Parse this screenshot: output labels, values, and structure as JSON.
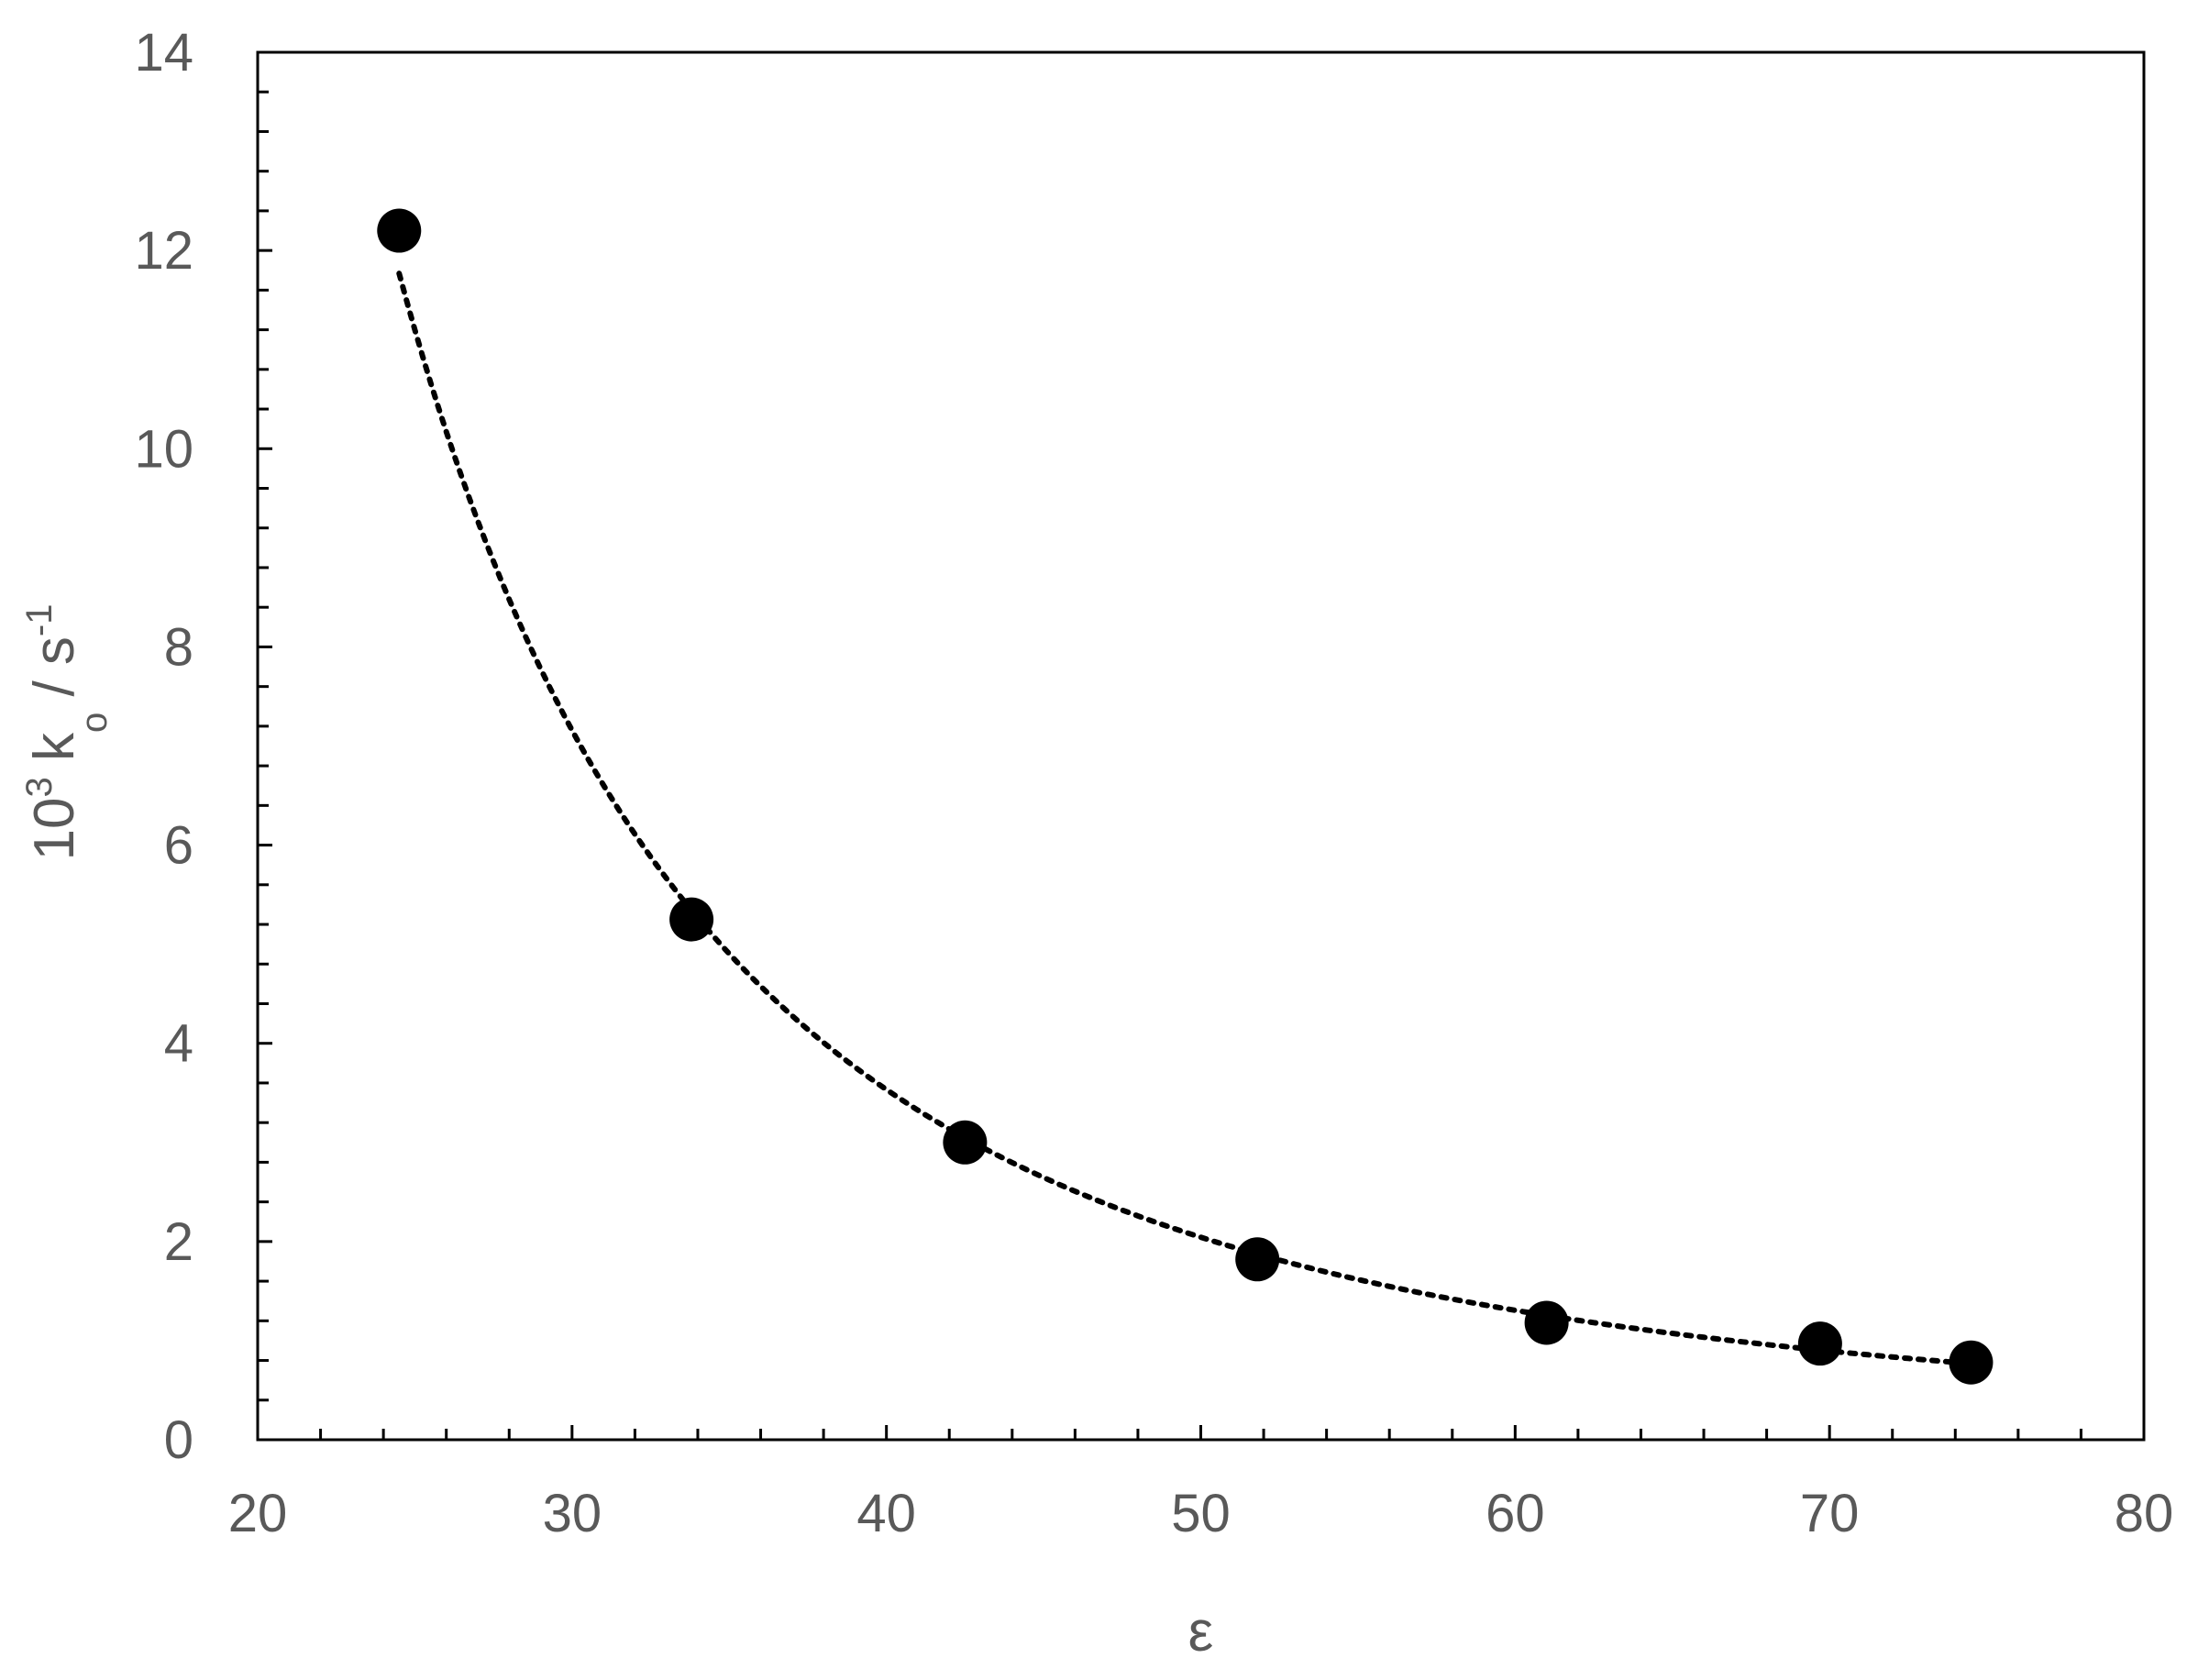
{
  "chart_data": {
    "type": "scatter",
    "title": "",
    "xlabel": "ε",
    "ylabel": {
      "parts": [
        {
          "text": "10",
          "style": "normal"
        },
        {
          "text": "3",
          "style": "sup"
        },
        {
          "text": " k",
          "style": "normal"
        },
        {
          "text": "o",
          "style": "sub"
        },
        {
          "text": " / s",
          "style": "normal"
        },
        {
          "text": "-1",
          "style": "sup"
        }
      ]
    },
    "xlim": [
      20,
      80
    ],
    "ylim": [
      0,
      14
    ],
    "x_ticks": [
      20,
      30,
      40,
      50,
      60,
      70,
      80
    ],
    "y_ticks": [
      0,
      2,
      4,
      6,
      8,
      10,
      12,
      14
    ],
    "x_minor_step": 2,
    "y_minor_step": 0.4,
    "grid": false,
    "legend": "none",
    "colors": {
      "marker": "#000000",
      "axis": "#000000",
      "text": "#595959",
      "trendline": "#000000"
    },
    "series": [
      {
        "marker": "filled-circle",
        "trendline": "dotted-power",
        "x": [
          24.5,
          33.8,
          42.5,
          51.8,
          61.0,
          69.7,
          74.5
        ],
        "y": [
          12.2,
          5.25,
          3.0,
          1.82,
          1.18,
          0.97,
          0.78
        ]
      }
    ]
  }
}
